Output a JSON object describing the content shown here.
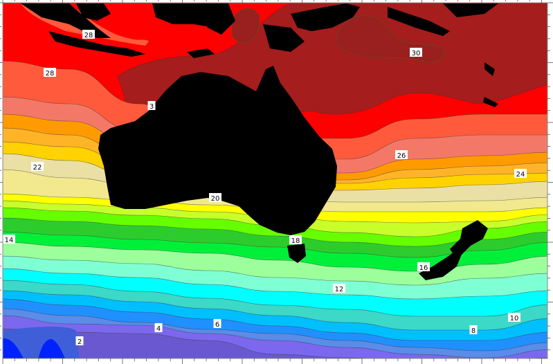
{
  "map": {
    "type": "filled contour map",
    "land_color": "#000000",
    "band_colors": [
      "#a51d1d",
      "#ff0000",
      "#ff5a3c",
      "#f47868",
      "#ff9a00",
      "#ffb428",
      "#ffd200",
      "#ebe0a4",
      "#f2e98e",
      "#ffff00",
      "#c8ff2a",
      "#66ff00",
      "#2dcc2d",
      "#00f03a",
      "#9cff9c",
      "#7fffd4",
      "#00ffff",
      "#3cd8c8",
      "#00bfff",
      "#2090ff",
      "#5a8ce8",
      "#7b68ee",
      "#6a58d0",
      "#3e5fd8",
      "#0022ff"
    ],
    "contour_labels": [
      "28",
      "28",
      "30",
      "26",
      "24",
      "22",
      "20",
      "18",
      "16",
      "14",
      "12",
      "10",
      "8",
      "6",
      "4",
      "2",
      "3"
    ]
  }
}
